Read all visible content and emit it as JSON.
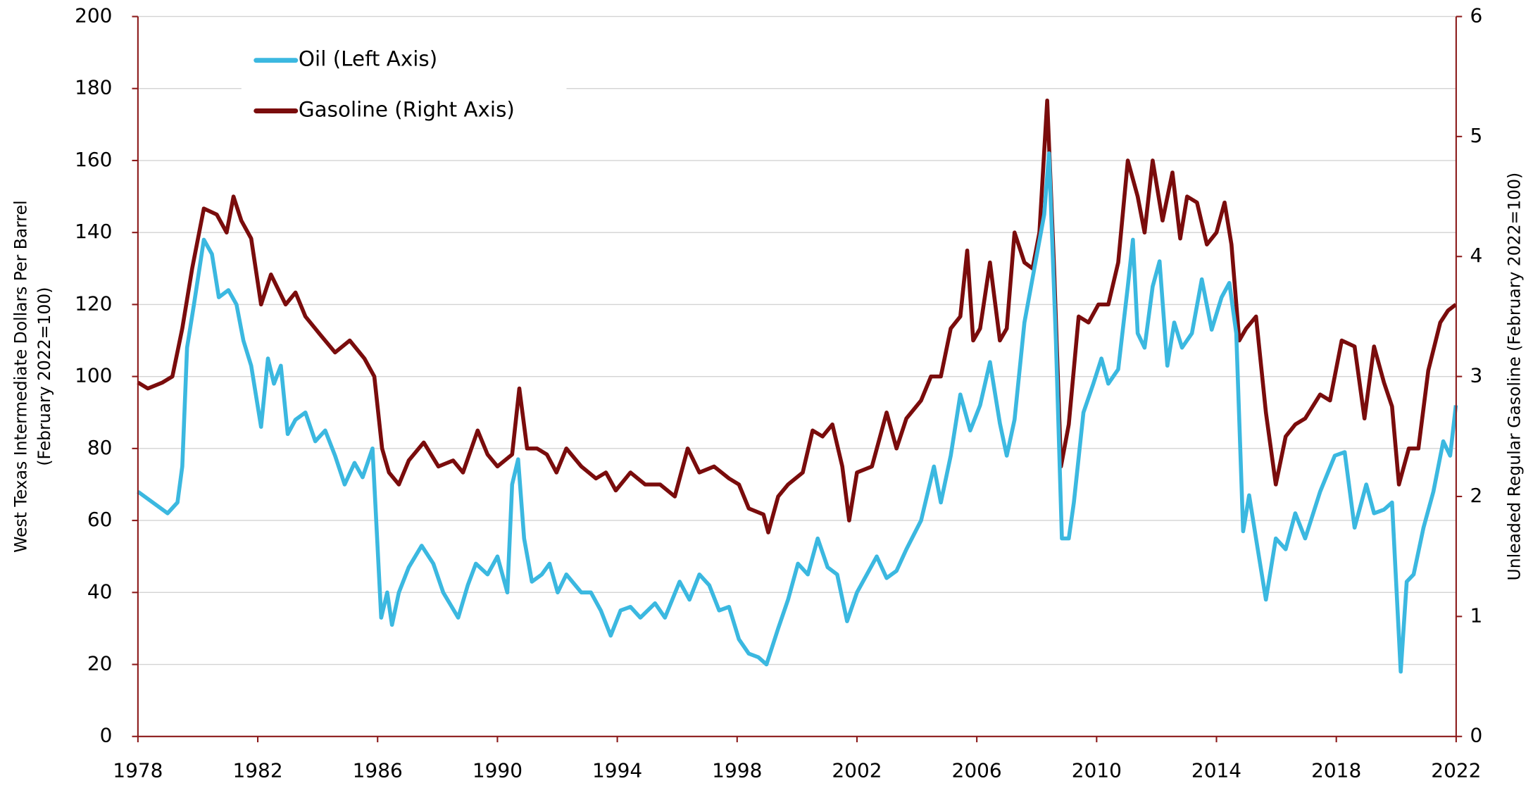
{
  "chart_data": {
    "type": "line",
    "y_label": "West Texas Intermediate Dollars Per Barrel",
    "y_label_2": "(February 2022=100)",
    "y2_label": "Unleaded Regular Gasoline (February 2022=100)",
    "xlim": [
      1978,
      2022
    ],
    "xticks": [
      1978,
      1982,
      1986,
      1990,
      1994,
      1998,
      2002,
      2006,
      2010,
      2014,
      2018,
      2022
    ],
    "ylim": [
      0,
      200
    ],
    "yticks": [
      0,
      20,
      40,
      60,
      80,
      100,
      120,
      140,
      160,
      180,
      200
    ],
    "y2lim": [
      0,
      6
    ],
    "y2ticks": [
      0,
      1,
      2,
      3,
      4,
      5,
      6
    ],
    "grid": true,
    "legend": "upper left",
    "axis_color": "#8b1a1a",
    "series": [
      {
        "name": "Oil (Left Axis)",
        "color": "#3bb8e0",
        "axis": "y",
        "x": [
          1978.0,
          1978.99,
          1979.32,
          1979.48,
          1979.64,
          1979.87,
          1980.2,
          1980.47,
          1980.7,
          1981.02,
          1981.29,
          1981.52,
          1981.78,
          1982.11,
          1982.34,
          1982.54,
          1982.77,
          1983.0,
          1983.26,
          1983.59,
          1983.92,
          1984.25,
          1984.58,
          1984.9,
          1985.23,
          1985.5,
          1985.83,
          1986.12,
          1986.32,
          1986.48,
          1986.71,
          1987.04,
          1987.47,
          1987.86,
          1988.19,
          1988.69,
          1989.01,
          1989.28,
          1989.67,
          1990.0,
          1990.33,
          1990.49,
          1990.69,
          1990.89,
          1991.15,
          1991.48,
          1991.74,
          1992.01,
          1992.3,
          1992.8,
          1993.12,
          1993.45,
          1993.78,
          1994.11,
          1994.44,
          1994.77,
          1995.26,
          1995.59,
          1996.08,
          1996.41,
          1996.74,
          1997.07,
          1997.4,
          1997.73,
          1998.06,
          1998.39,
          1998.71,
          1998.98,
          1999.37,
          1999.7,
          2000.03,
          2000.36,
          2000.69,
          2001.02,
          2001.34,
          2001.67,
          2002.0,
          2002.33,
          2002.66,
          2002.99,
          2003.32,
          2003.65,
          2004.14,
          2004.57,
          2004.8,
          2005.13,
          2005.45,
          2005.78,
          2006.11,
          2006.44,
          2006.77,
          2007.0,
          2007.26,
          2007.59,
          2007.92,
          2008.25,
          2008.41,
          2008.64,
          2008.84,
          2009.07,
          2009.24,
          2009.56,
          2009.89,
          2010.16,
          2010.39,
          2010.72,
          2011.04,
          2011.21,
          2011.37,
          2011.6,
          2011.87,
          2012.1,
          2012.36,
          2012.59,
          2012.85,
          2013.18,
          2013.51,
          2013.84,
          2014.17,
          2014.43,
          2014.66,
          2014.89,
          2015.09,
          2015.32,
          2015.65,
          2015.98,
          2016.31,
          2016.63,
          2016.96,
          2017.46,
          2017.95,
          2018.28,
          2018.61,
          2019.0,
          2019.26,
          2019.59,
          2019.86,
          2020.15,
          2020.35,
          2020.58,
          2020.91,
          2021.24,
          2021.57,
          2021.8,
          2021.99
        ],
        "values": [
          68,
          62,
          65,
          75,
          108,
          120,
          138,
          134,
          122,
          124,
          120,
          110,
          103,
          86,
          105,
          98,
          103,
          84,
          88,
          90,
          82,
          85,
          78,
          70,
          76,
          72,
          80,
          33,
          40,
          31,
          40,
          47,
          53,
          48,
          40,
          33,
          42,
          48,
          45,
          50,
          40,
          70,
          77,
          55,
          43,
          45,
          48,
          40,
          45,
          40,
          40,
          35,
          28,
          35,
          36,
          33,
          37,
          33,
          43,
          38,
          45,
          42,
          35,
          36,
          27,
          23,
          22,
          20,
          30,
          38,
          48,
          45,
          55,
          47,
          45,
          32,
          40,
          45,
          50,
          44,
          46,
          52,
          60,
          75,
          65,
          78,
          95,
          85,
          92,
          104,
          87,
          78,
          88,
          115,
          130,
          145,
          162,
          110,
          55,
          55,
          65,
          90,
          98,
          105,
          98,
          102,
          125,
          138,
          112,
          108,
          125,
          132,
          103,
          115,
          108,
          112,
          127,
          113,
          122,
          126,
          112,
          57,
          67,
          55,
          38,
          55,
          52,
          62,
          55,
          68,
          78,
          79,
          58,
          70,
          62,
          63,
          65,
          18,
          43,
          45,
          58,
          68,
          82,
          78,
          92
        ]
      },
      {
        "name": "Gasoline (Right Axis)",
        "color": "#7a0c0c",
        "axis": "y2",
        "x": [
          1978.0,
          1978.33,
          1978.82,
          1979.15,
          1979.48,
          1979.81,
          1980.2,
          1980.63,
          1980.96,
          1981.19,
          1981.45,
          1981.78,
          1982.11,
          1982.44,
          1982.93,
          1983.26,
          1983.59,
          1984.08,
          1984.58,
          1985.07,
          1985.56,
          1985.89,
          1986.15,
          1986.38,
          1986.71,
          1987.04,
          1987.54,
          1988.03,
          1988.52,
          1988.85,
          1989.34,
          1989.67,
          1990.0,
          1990.49,
          1990.73,
          1990.99,
          1991.32,
          1991.65,
          1991.97,
          1992.3,
          1992.8,
          1993.29,
          1993.62,
          1993.95,
          1994.44,
          1994.93,
          1995.43,
          1995.92,
          1996.35,
          1996.74,
          1997.23,
          1997.73,
          1998.06,
          1998.39,
          1998.88,
          1999.04,
          1999.37,
          1999.7,
          2000.19,
          2000.52,
          2000.85,
          2001.18,
          2001.51,
          2001.74,
          2002.0,
          2002.5,
          2002.99,
          2003.32,
          2003.65,
          2004.14,
          2004.47,
          2004.8,
          2005.13,
          2005.45,
          2005.68,
          2005.88,
          2006.11,
          2006.44,
          2006.77,
          2007.0,
          2007.26,
          2007.59,
          2007.86,
          2008.09,
          2008.35,
          2008.58,
          2008.81,
          2009.07,
          2009.4,
          2009.73,
          2010.06,
          2010.39,
          2010.72,
          2011.04,
          2011.37,
          2011.6,
          2011.87,
          2012.2,
          2012.53,
          2012.79,
          2013.02,
          2013.35,
          2013.68,
          2014.0,
          2014.27,
          2014.5,
          2014.76,
          2014.99,
          2015.32,
          2015.65,
          2015.98,
          2016.31,
          2016.63,
          2016.96,
          2017.46,
          2017.79,
          2018.18,
          2018.61,
          2018.94,
          2019.26,
          2019.59,
          2019.86,
          2020.09,
          2020.42,
          2020.74,
          2021.07,
          2021.47,
          2021.73,
          2021.99
        ],
        "values": [
          2.95,
          2.9,
          2.95,
          3.0,
          3.4,
          3.9,
          4.4,
          4.35,
          4.2,
          4.5,
          4.3,
          4.15,
          3.6,
          3.85,
          3.6,
          3.7,
          3.5,
          3.35,
          3.2,
          3.3,
          3.15,
          3.0,
          2.4,
          2.2,
          2.1,
          2.3,
          2.45,
          2.25,
          2.3,
          2.2,
          2.55,
          2.35,
          2.25,
          2.35,
          2.9,
          2.4,
          2.4,
          2.35,
          2.2,
          2.4,
          2.25,
          2.15,
          2.2,
          2.05,
          2.2,
          2.1,
          2.1,
          2.0,
          2.4,
          2.2,
          2.25,
          2.15,
          2.1,
          1.9,
          1.85,
          1.7,
          2.0,
          2.1,
          2.2,
          2.55,
          2.5,
          2.6,
          2.25,
          1.8,
          2.2,
          2.25,
          2.7,
          2.4,
          2.65,
          2.8,
          3.0,
          3.0,
          3.4,
          3.5,
          4.05,
          3.3,
          3.4,
          3.95,
          3.3,
          3.4,
          4.2,
          3.95,
          3.9,
          4.2,
          5.3,
          3.9,
          2.25,
          2.6,
          3.5,
          3.45,
          3.6,
          3.6,
          3.95,
          4.8,
          4.5,
          4.2,
          4.8,
          4.3,
          4.7,
          4.15,
          4.5,
          4.45,
          4.1,
          4.2,
          4.45,
          4.1,
          3.3,
          3.4,
          3.5,
          2.7,
          2.1,
          2.5,
          2.6,
          2.65,
          2.85,
          2.8,
          3.3,
          3.25,
          2.65,
          3.25,
          2.95,
          2.75,
          2.1,
          2.4,
          2.4,
          3.05,
          3.45,
          3.55,
          3.6
        ]
      }
    ]
  }
}
